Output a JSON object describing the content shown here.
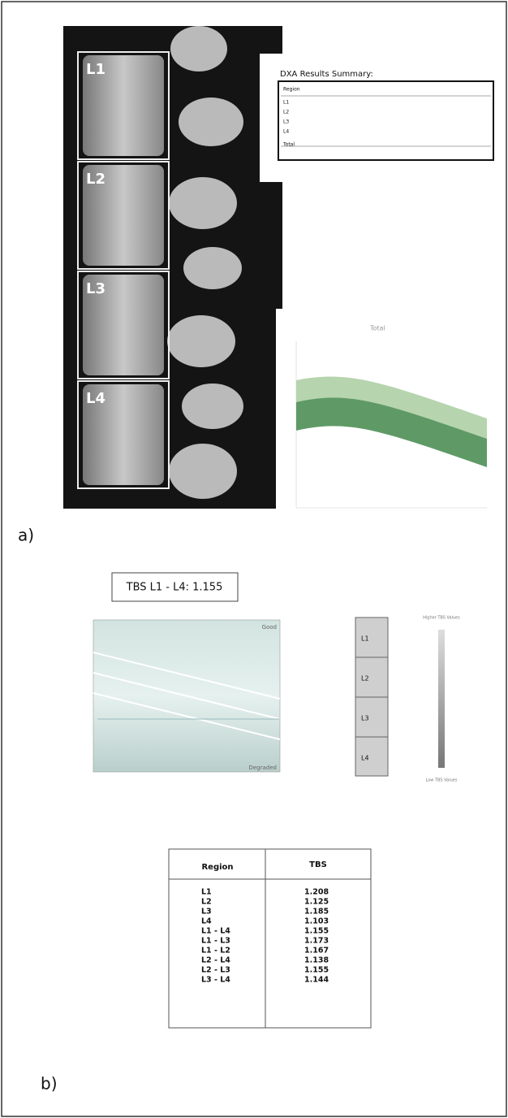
{
  "panel_a": {
    "label": "a)",
    "vertebra_labels": [
      "L1",
      "L2",
      "L3",
      "L4"
    ],
    "dxa_summary": {
      "title": "DXA Results Summary:",
      "header": [
        "Region"
      ],
      "rows": [
        "L1",
        "L2",
        "L3",
        "L4",
        "Total"
      ]
    },
    "curve_label": "Total"
  },
  "panel_b": {
    "label": "b)",
    "tbs_headline": "TBS L1 - L4: 1.155",
    "chart_annotations": [
      "Good",
      "Degraded"
    ],
    "strip_labels": [
      "L1",
      "L2",
      "L3",
      "L4"
    ],
    "scale_labels": [
      "Higher TBS Values",
      "Low TBS Values"
    ],
    "table": {
      "header": [
        "Region",
        "TBS"
      ],
      "rows": [
        [
          "L1",
          "1.208"
        ],
        [
          "L2",
          "1.125"
        ],
        [
          "L3",
          "1.185"
        ],
        [
          "L4",
          "1.103"
        ],
        [
          "L1 - L4",
          "1.155"
        ],
        [
          "L1 - L3",
          "1.173"
        ],
        [
          "L1 - L2",
          "1.167"
        ],
        [
          "L2 - L4",
          "1.138"
        ],
        [
          "L2 - L3",
          "1.155"
        ],
        [
          "L3 - L4",
          "1.144"
        ]
      ]
    }
  }
}
